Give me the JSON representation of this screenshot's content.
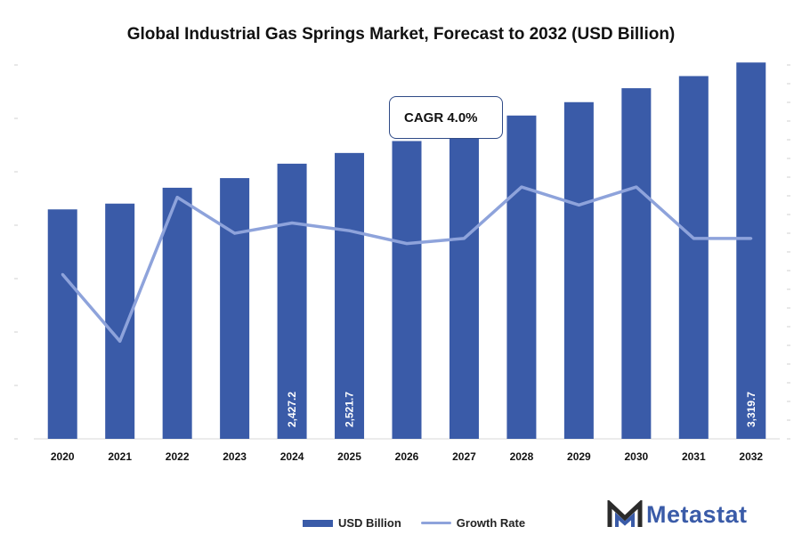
{
  "title": "Global Industrial Gas Springs Market, Forecast to 2032 (USD Billion)",
  "cagr_label": "CAGR 4.0%",
  "legend": {
    "bar_label": "USD Billion",
    "line_label": "Growth Rate"
  },
  "logo_text": "Metastat",
  "colors": {
    "bar": "#3a5ba8",
    "line": "#8ea3db",
    "logo_dark": "#2b2b2b",
    "logo_accent": "#3a5ba8"
  },
  "chart_data": {
    "type": "bar",
    "title": "Global Industrial Gas Springs Market, Forecast to 2032 (USD Billion)",
    "categories": [
      "2020",
      "2021",
      "2022",
      "2023",
      "2024",
      "2025",
      "2026",
      "2027",
      "2028",
      "2029",
      "2030",
      "2031",
      "2032"
    ],
    "series": [
      {
        "name": "USD Billion",
        "type": "bar",
        "values": [
          2024,
          2075,
          2215,
          2300,
          2427.2,
          2521.7,
          2627,
          2736,
          2852,
          2970,
          3093,
          3200,
          3319.7
        ],
        "labels": [
          "",
          "",
          "",
          "",
          "2,427.2",
          "2,521.7",
          "",
          "",
          "",
          "",
          "",
          "",
          "3,319.7"
        ]
      },
      {
        "name": "Growth Rate",
        "type": "line",
        "values": [
          3.2,
          1.9,
          4.7,
          4.0,
          4.2,
          4.05,
          3.8,
          3.9,
          4.9,
          4.55,
          4.9,
          3.9,
          3.9
        ]
      }
    ],
    "ylim": [
      0,
      3400
    ],
    "ylim_right": [
      0,
      7.5
    ],
    "grid": false,
    "legend_position": "bottom",
    "annotations": [
      "CAGR 4.0%"
    ]
  }
}
